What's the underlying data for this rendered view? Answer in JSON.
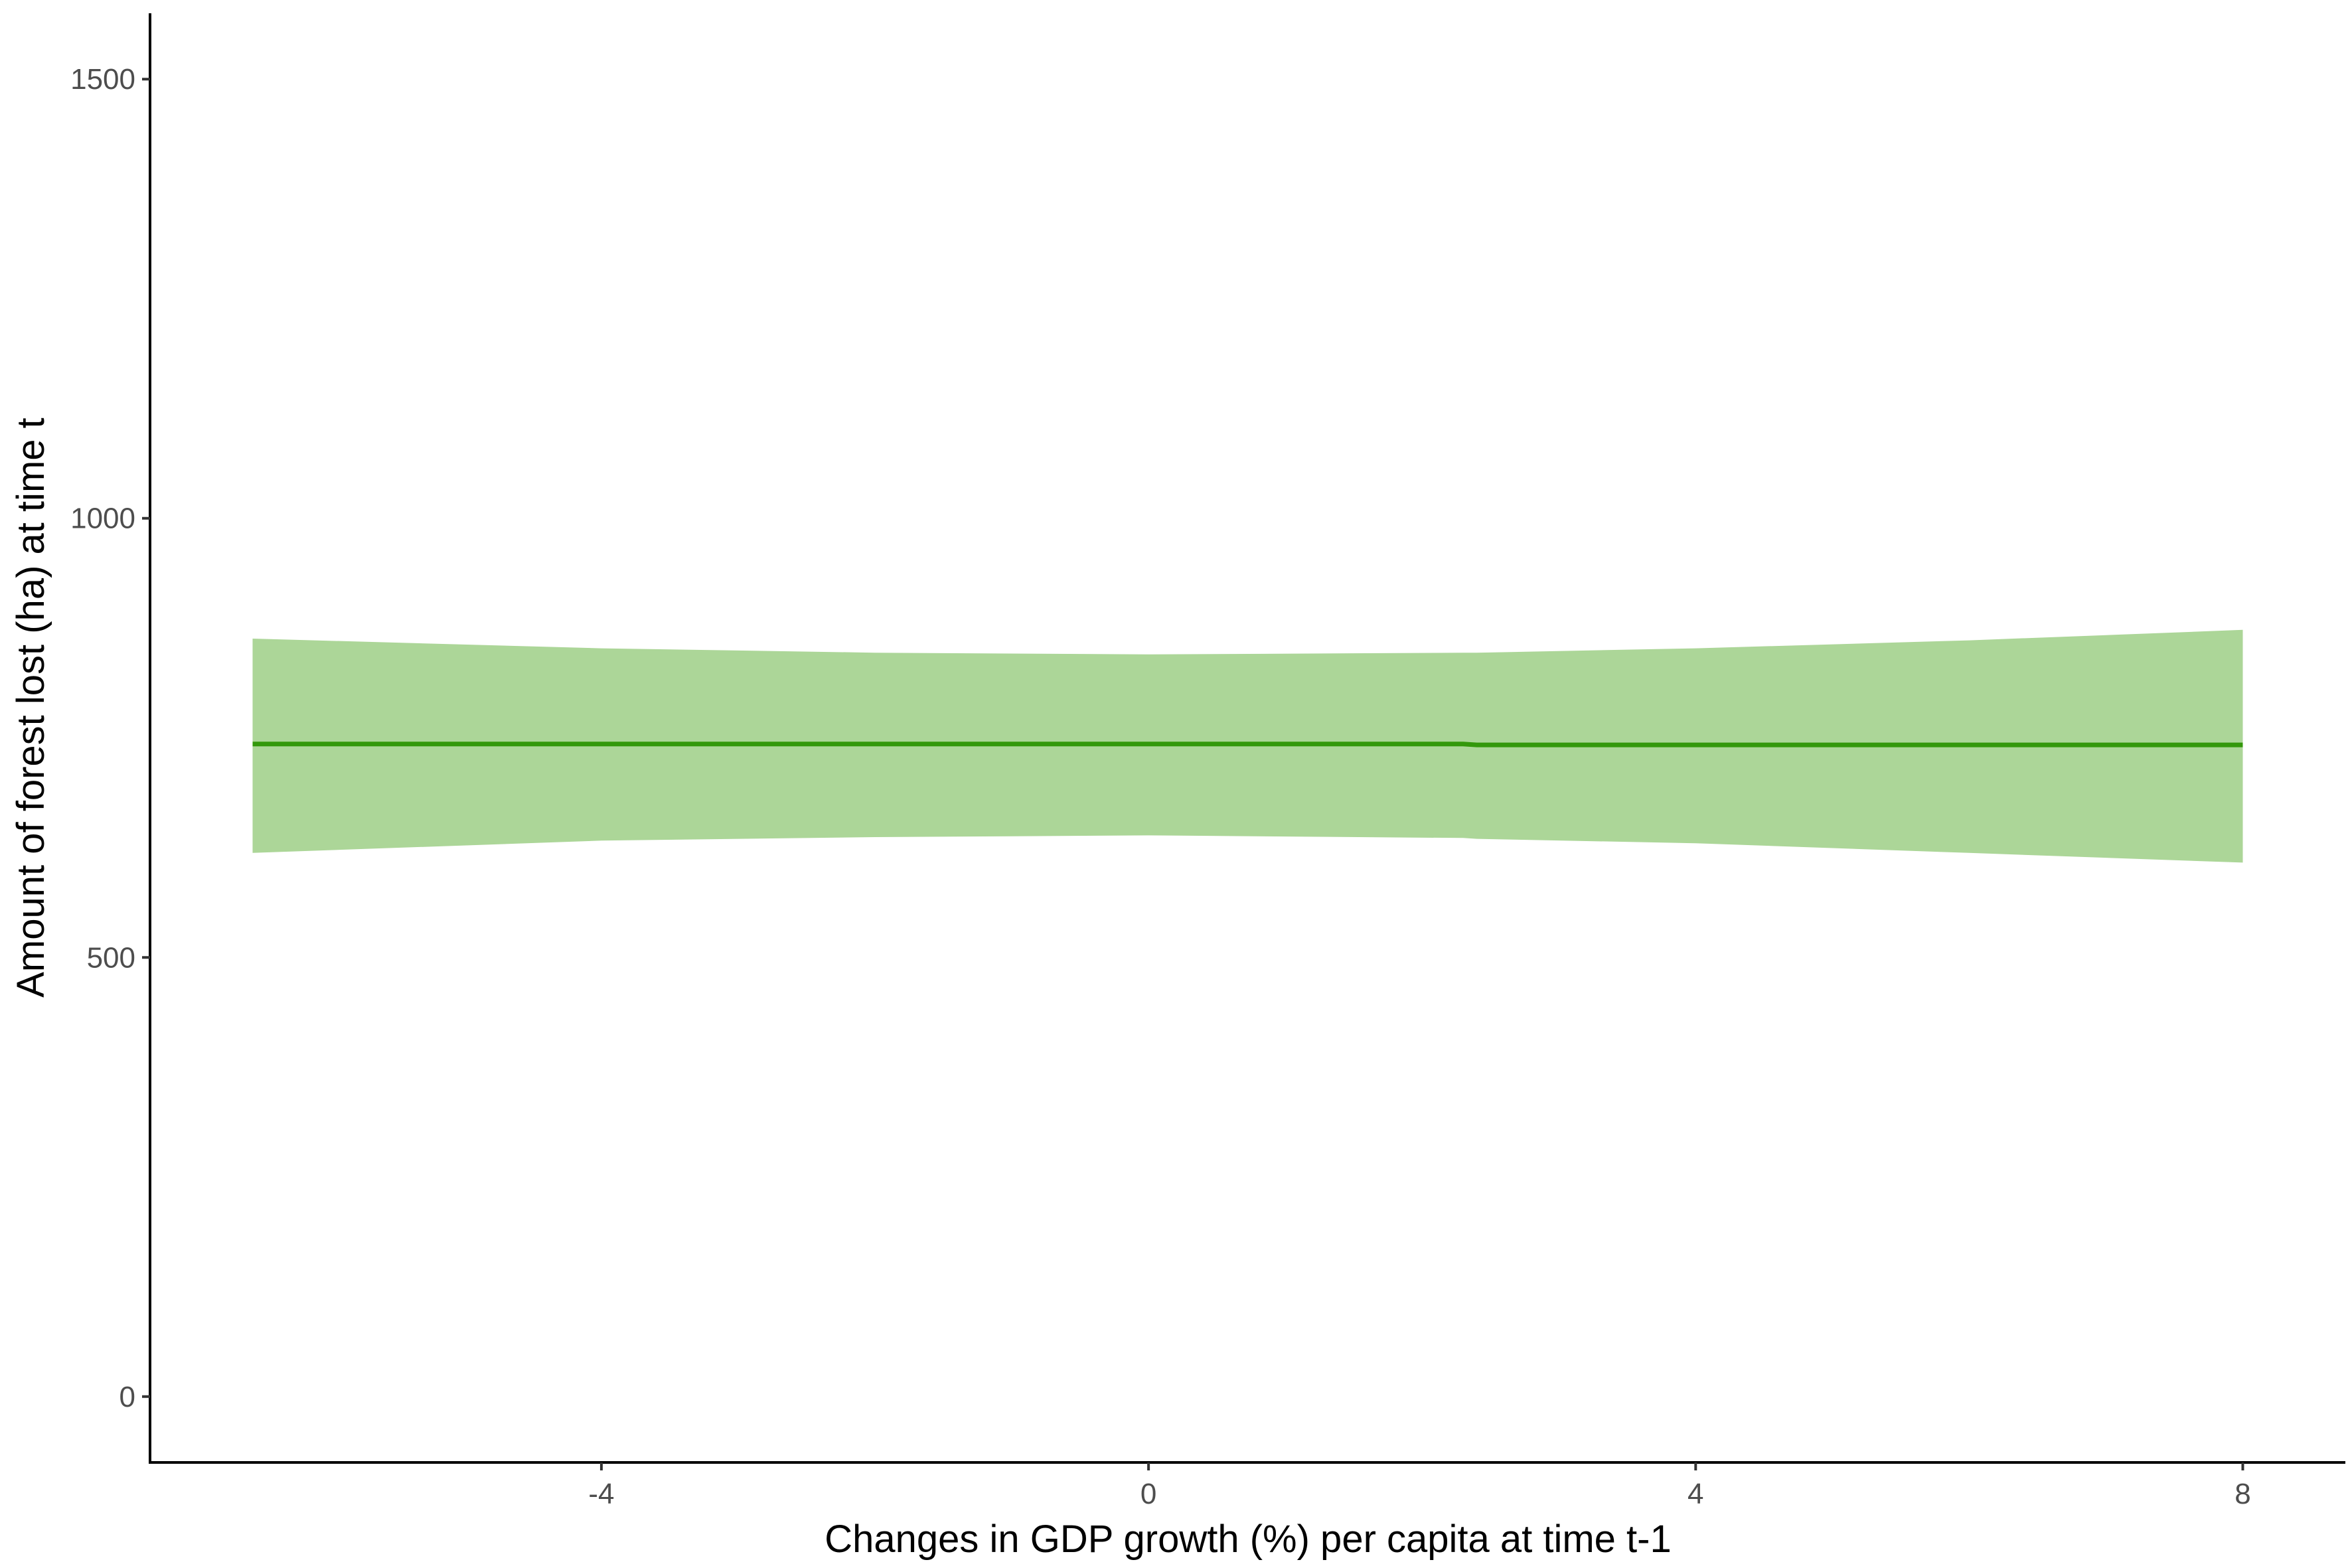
{
  "chart_data": {
    "type": "line",
    "title": "",
    "xlabel": "Changes in GDP growth (%) per capita at time t-1",
    "ylabel": "Amount of forest lost (ha) at time t",
    "xlim": [
      -7.3,
      8.75
    ],
    "ylim": [
      -75,
      1575
    ],
    "x_ticks": [
      -4,
      0,
      4,
      8
    ],
    "y_ticks": [
      0,
      500,
      1000,
      1500
    ],
    "x_tick_labels": [
      "-4",
      "0",
      "4",
      "8"
    ],
    "y_tick_labels": [
      "0",
      "500",
      "1000",
      "1500"
    ],
    "grid": false,
    "legend": "none",
    "colors": {
      "line": "#33980B",
      "ribbon": "#ACD698",
      "axis": "#000000",
      "tick_text": "#4d4d4d"
    },
    "series": [
      {
        "x": [
          -6.55,
          -4,
          -2,
          0,
          2.3,
          2.4,
          4,
          6,
          8
        ],
        "y": [
          743,
          743,
          743,
          743,
          743,
          742,
          742,
          742,
          742
        ],
        "lower": [
          619,
          633,
          637,
          639,
          636,
          635,
          630,
          619,
          608
        ],
        "upper": [
          863,
          852,
          847,
          845,
          847,
          847,
          852,
          861,
          873
        ]
      }
    ]
  }
}
